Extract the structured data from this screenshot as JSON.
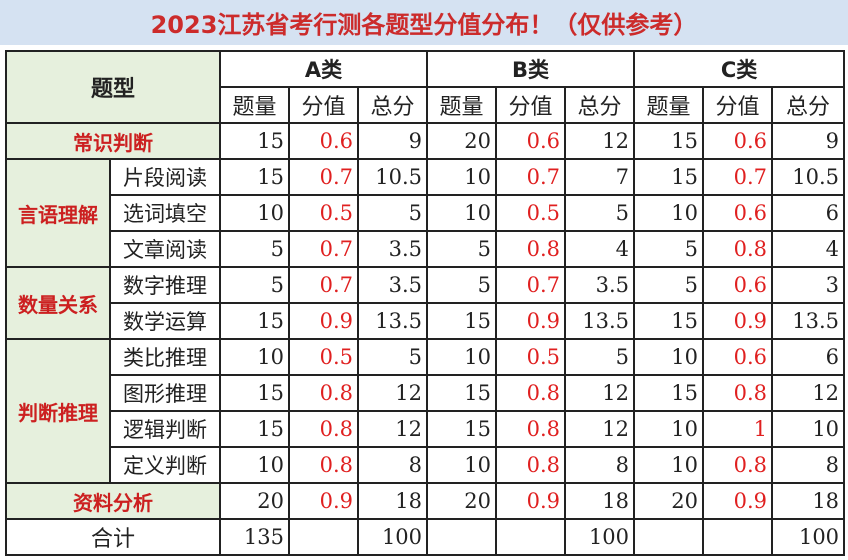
{
  "title": "2023江苏省考行测各题型分值分布！（仅供参考）",
  "header": {
    "type_label": "题型",
    "classes": [
      "A类",
      "B类",
      "C类"
    ],
    "cols": [
      "题量",
      "分值",
      "总分"
    ]
  },
  "rows": {
    "r1": {
      "cat": "常识判断",
      "a": [
        "15",
        "0.6",
        "9"
      ],
      "b": [
        "20",
        "0.6",
        "12"
      ],
      "c": [
        "15",
        "0.6",
        "9"
      ]
    },
    "r2": {
      "cat": "言语理解",
      "sub": "片段阅读",
      "a": [
        "15",
        "0.7",
        "10.5"
      ],
      "b": [
        "10",
        "0.7",
        "7"
      ],
      "c": [
        "15",
        "0.7",
        "10.5"
      ]
    },
    "r3": {
      "sub": "选词填空",
      "a": [
        "10",
        "0.5",
        "5"
      ],
      "b": [
        "10",
        "0.5",
        "5"
      ],
      "c": [
        "10",
        "0.6",
        "6"
      ]
    },
    "r4": {
      "sub": "文章阅读",
      "a": [
        "5",
        "0.7",
        "3.5"
      ],
      "b": [
        "5",
        "0.8",
        "4"
      ],
      "c": [
        "5",
        "0.8",
        "4"
      ]
    },
    "r5": {
      "cat": "数量关系",
      "sub": "数字推理",
      "a": [
        "5",
        "0.7",
        "3.5"
      ],
      "b": [
        "5",
        "0.7",
        "3.5"
      ],
      "c": [
        "5",
        "0.6",
        "3"
      ]
    },
    "r6": {
      "sub": "数学运算",
      "a": [
        "15",
        "0.9",
        "13.5"
      ],
      "b": [
        "15",
        "0.9",
        "13.5"
      ],
      "c": [
        "15",
        "0.9",
        "13.5"
      ]
    },
    "r7": {
      "cat": "判断推理",
      "sub": "类比推理",
      "a": [
        "10",
        "0.5",
        "5"
      ],
      "b": [
        "10",
        "0.5",
        "5"
      ],
      "c": [
        "10",
        "0.6",
        "6"
      ]
    },
    "r8": {
      "sub": "图形推理",
      "a": [
        "15",
        "0.8",
        "12"
      ],
      "b": [
        "15",
        "0.8",
        "12"
      ],
      "c": [
        "15",
        "0.8",
        "12"
      ]
    },
    "r9": {
      "sub": "逻辑判断",
      "a": [
        "15",
        "0.8",
        "12"
      ],
      "b": [
        "15",
        "0.8",
        "12"
      ],
      "c": [
        "10",
        "1",
        "10"
      ]
    },
    "r10": {
      "sub": "定义判断",
      "a": [
        "10",
        "0.8",
        "8"
      ],
      "b": [
        "10",
        "0.8",
        "8"
      ],
      "c": [
        "10",
        "0.8",
        "8"
      ]
    },
    "r11": {
      "cat": "资料分析",
      "a": [
        "20",
        "0.9",
        "18"
      ],
      "b": [
        "20",
        "0.9",
        "18"
      ],
      "c": [
        "20",
        "0.9",
        "18"
      ]
    },
    "total": {
      "label": "合计",
      "a": [
        "135",
        "",
        "100"
      ],
      "b": [
        "",
        "",
        "100"
      ],
      "c": [
        "",
        "",
        "100"
      ]
    }
  },
  "colors": {
    "title_bg": "#d5e2f2",
    "title_text": "#cc2b2b",
    "header_bg": "#e6f0dd",
    "value_red": "#e02020"
  }
}
